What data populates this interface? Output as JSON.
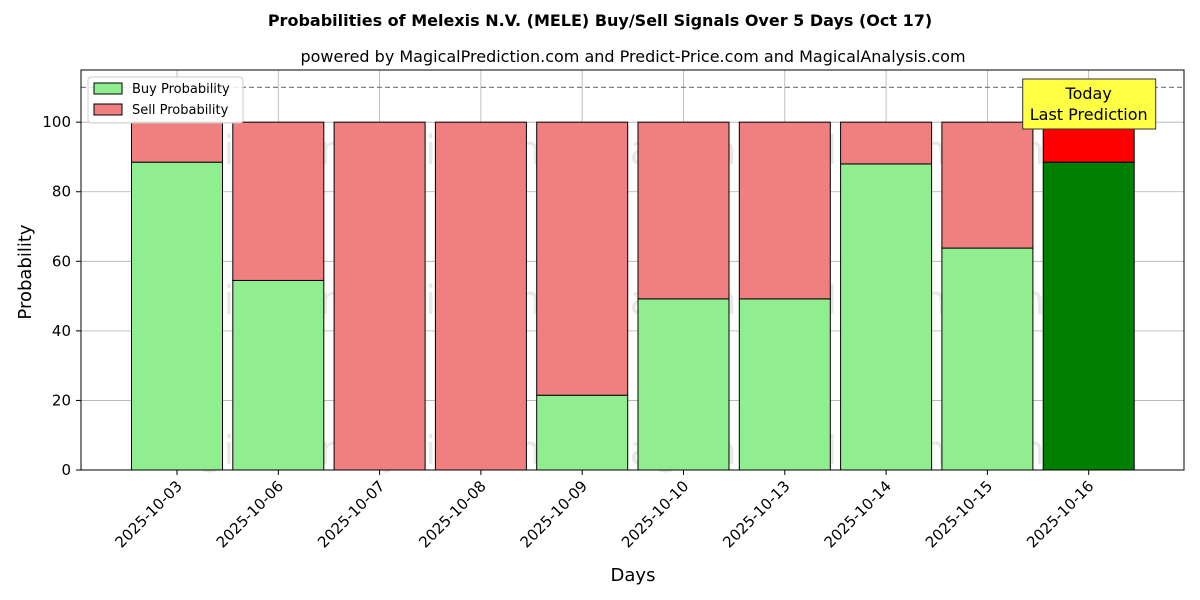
{
  "chart_data": {
    "type": "bar",
    "stacked": true,
    "title": "Probabilities of Melexis N.V. (MELE) Buy/Sell Signals Over 5 Days (Oct 17)",
    "subtitle": "powered by MagicalPrediction.com and Predict-Price.com and MagicalAnalysis.com",
    "xlabel": "Days",
    "ylabel": "Probability",
    "categories": [
      "2025-10-03",
      "2025-10-06",
      "2025-10-07",
      "2025-10-08",
      "2025-10-09",
      "2025-10-10",
      "2025-10-13",
      "2025-10-14",
      "2025-10-15",
      "2025-10-16"
    ],
    "series": [
      {
        "name": "Buy Probability",
        "values": [
          88.5,
          54.5,
          0,
          0,
          21.5,
          49.2,
          49.2,
          88.0,
          63.8,
          88.5
        ],
        "color": "#90ee90",
        "highlight_color": "#008000"
      },
      {
        "name": "Sell Probability",
        "values": [
          11.5,
          45.5,
          100,
          100,
          78.5,
          50.8,
          50.8,
          12.0,
          36.2,
          11.5
        ],
        "color": "#f08080",
        "highlight_color": "#ff0000"
      }
    ],
    "highlight_index": 9,
    "ylim": [
      0,
      115
    ],
    "yticks": [
      0,
      20,
      40,
      60,
      80,
      100
    ],
    "reference_line": 110,
    "grid": true,
    "legend_position": "top-left",
    "annotation": {
      "lines": [
        "Today",
        "Last Prediction"
      ],
      "background": "#ffff44"
    },
    "watermarks": [
      "MagicalAnalysis.com",
      "MagicalPrediction.com"
    ]
  }
}
